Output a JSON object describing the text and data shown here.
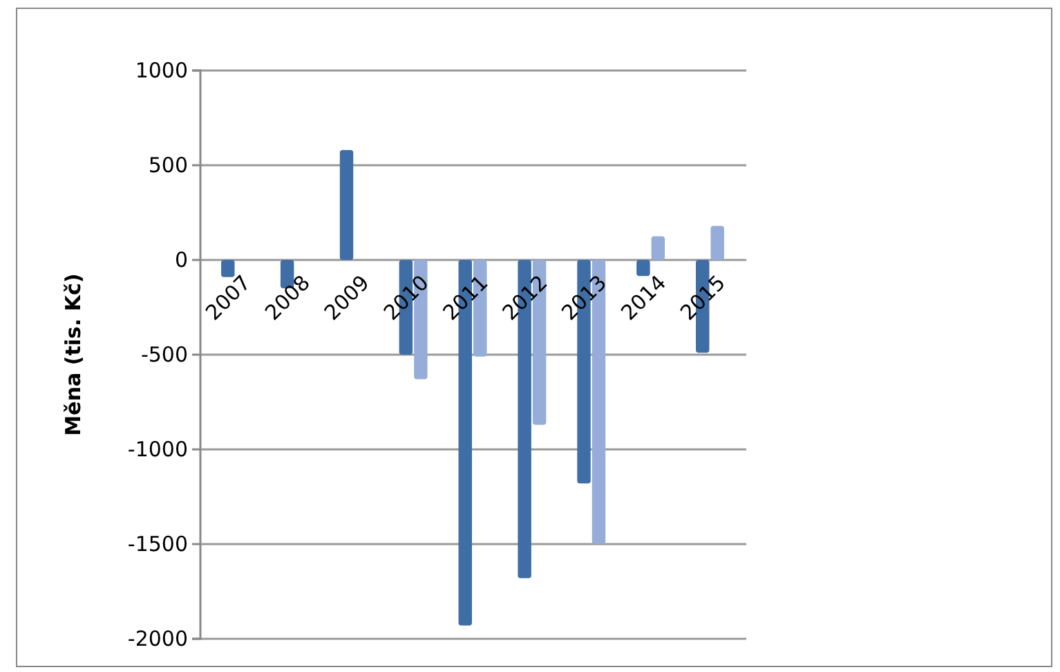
{
  "chart_data": {
    "type": "bar",
    "ylabel": "Měna (tis. Kč)",
    "categories": [
      "2007",
      "2008",
      "2009",
      "2010",
      "2011",
      "2012",
      "2013",
      "2014",
      "2015"
    ],
    "series": [
      {
        "color": "#3f6ea6",
        "values": [
          -90,
          -150,
          580,
          -500,
          -1930,
          -1680,
          -1180,
          -85,
          -490
        ]
      },
      {
        "color": "#95add8",
        "values": [
          null,
          null,
          null,
          -630,
          -510,
          -870,
          -1500,
          125,
          180
        ]
      }
    ],
    "ylim": [
      -2000,
      1000
    ],
    "yticks": [
      -2000,
      -1500,
      -1000,
      -500,
      0,
      500,
      1000
    ],
    "grid": "y"
  }
}
